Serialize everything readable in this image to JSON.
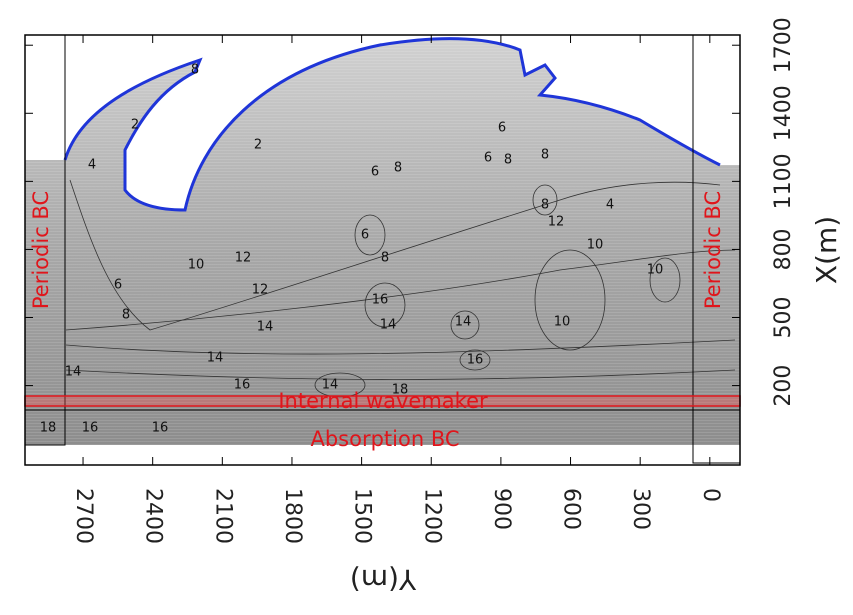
{
  "chart_data": {
    "type": "contour",
    "xlabel": "Y(m)",
    "ylabel": "X(m)",
    "xlim": [
      2950,
      -130
    ],
    "xticks": [
      2700,
      2400,
      2100,
      1800,
      1500,
      1200,
      900,
      600,
      300,
      0
    ],
    "ylim": [
      -150,
      1745
    ],
    "yticks": [
      200,
      500,
      800,
      1100,
      1400,
      1700
    ],
    "annotations": [
      "Periodic BC",
      "Periodic BC",
      "Internal wavemaker",
      "Absorption BC"
    ],
    "contour_labels": [
      8,
      2,
      4,
      2,
      6,
      8,
      6,
      8,
      6,
      8,
      8,
      12,
      4,
      10,
      12,
      10,
      6,
      8,
      12,
      14,
      6,
      8,
      16,
      14,
      14,
      16,
      14,
      16,
      14,
      18,
      16,
      16,
      18,
      14,
      10,
      10
    ],
    "coastline_color": "#1f35d8",
    "annotation_color": "#e0151b"
  }
}
